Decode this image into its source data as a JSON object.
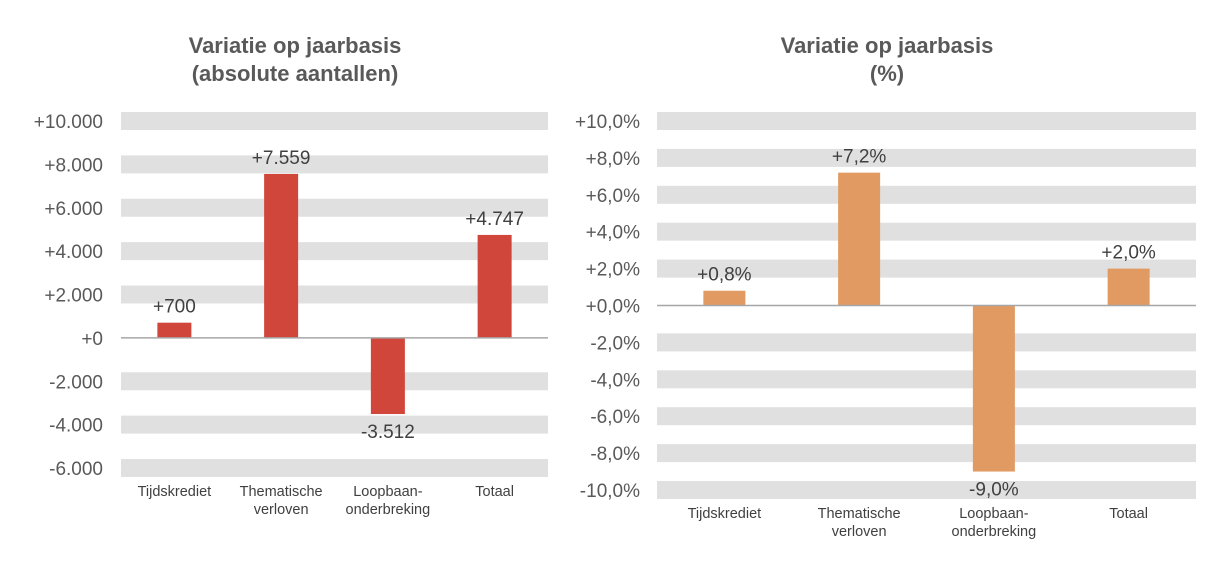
{
  "chart_data": [
    {
      "type": "bar",
      "title": [
        "Variatie op jaarbasis",
        "(absolute aantallen)"
      ],
      "categories": [
        [
          "Tijdskrediet"
        ],
        [
          "Thematische",
          "verloven"
        ],
        [
          "Loopbaan-",
          "onderbreking"
        ],
        [
          "Totaal"
        ]
      ],
      "values": [
        700,
        7559,
        -3512,
        4747
      ],
      "data_labels": [
        "+700",
        "+7.559",
        "-3.512",
        "+4.747"
      ],
      "ylim": [
        -6000,
        10000
      ],
      "yticks": [
        10000,
        8000,
        6000,
        4000,
        2000,
        0,
        -2000,
        -4000,
        -6000
      ],
      "ytick_labels": [
        "+10.000",
        "+8.000",
        "+6.000",
        "+4.000",
        "+2.000",
        "+0",
        "-2.000",
        "-4.000",
        "-6.000"
      ],
      "grid": "horizontal bands",
      "color": "#D0463B"
    },
    {
      "type": "bar",
      "title": [
        "Variatie op jaarbasis",
        "(%)"
      ],
      "categories": [
        [
          "Tijdskrediet"
        ],
        [
          "Thematische",
          "verloven"
        ],
        [
          "Loopbaan-",
          "onderbreking"
        ],
        [
          "Totaal"
        ]
      ],
      "values": [
        0.8,
        7.2,
        -9.0,
        2.0
      ],
      "data_labels": [
        "+0,8%",
        "+7,2%",
        "-9,0%",
        "+2,0%"
      ],
      "ylim": [
        -10,
        10
      ],
      "yticks": [
        10,
        8,
        6,
        4,
        2,
        0,
        -2,
        -4,
        -6,
        -8,
        -10
      ],
      "ytick_labels": [
        "+10,0%",
        "+8,0%",
        "+6,0%",
        "+4,0%",
        "+2,0%",
        "+0,0%",
        "-2,0%",
        "-4,0%",
        "-6,0%",
        "-8,0%",
        "-10,0%"
      ],
      "grid": "horizontal bands",
      "color": "#E09A62"
    }
  ],
  "colors": {
    "band": "#E0E0E0",
    "zero_line": "#A6A6A6"
  }
}
